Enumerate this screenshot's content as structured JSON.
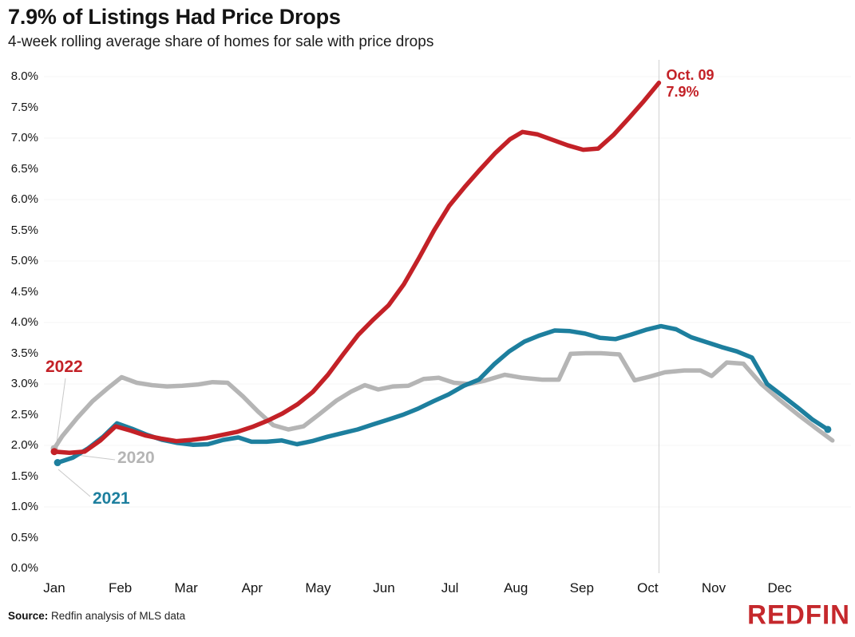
{
  "header": {
    "title": "7.9% of Listings Had Price Drops",
    "subtitle": "4-week rolling average share of homes for sale with price drops"
  },
  "footer": {
    "source_label": "Source:",
    "source_text": "Redfin analysis of MLS data",
    "logo": "REDFIN"
  },
  "colors": {
    "red_2022": "#c32127",
    "teal_2021": "#1d7f9e",
    "gray_2020": "#b5b5b5",
    "marker_line": "#d0d0d0",
    "grid_line": "#f4f4f4",
    "leader_line": "#c9c9c9",
    "logo_red": "#c5282c"
  },
  "chart_data": {
    "type": "line",
    "title": "7.9% of Listings Had Price Drops",
    "subtitle": "4-week rolling average share of homes for sale with price drops",
    "xlabel": "",
    "ylabel": "",
    "ylim": [
      0.0,
      8.0
    ],
    "grid": "faint horizontal lines at 1% intervals; vertical marker line at Oct 09",
    "legend_position": "inline labels at line starts",
    "x_axis": {
      "months": [
        "Jan",
        "Feb",
        "Mar",
        "Apr",
        "May",
        "Jun",
        "Jul",
        "Aug",
        "Sep",
        "Oct",
        "Nov",
        "Dec"
      ]
    },
    "y_axis": {
      "ticks": [
        {
          "v": 8.0,
          "label": "8.0%"
        },
        {
          "v": 7.5,
          "label": "7.5%"
        },
        {
          "v": 7.0,
          "label": "7.0%"
        },
        {
          "v": 6.5,
          "label": "6.5%"
        },
        {
          "v": 6.0,
          "label": "6.0%"
        },
        {
          "v": 5.5,
          "label": "5.5%"
        },
        {
          "v": 5.0,
          "label": "5.0%"
        },
        {
          "v": 4.5,
          "label": "4.5%"
        },
        {
          "v": 4.0,
          "label": "4.0%"
        },
        {
          "v": 3.5,
          "label": "3.5%"
        },
        {
          "v": 3.0,
          "label": "3.0%"
        },
        {
          "v": 2.5,
          "label": "2.5%"
        },
        {
          "v": 2.0,
          "label": "2.0%"
        },
        {
          "v": 1.5,
          "label": "1.5%"
        },
        {
          "v": 1.0,
          "label": "1.0%"
        },
        {
          "v": 0.5,
          "label": "0.5%"
        },
        {
          "v": 0.0,
          "label": "0.0%"
        }
      ]
    },
    "marker": {
      "m": 9.17,
      "date": "Oct. 09",
      "value": "7.9%"
    },
    "series": [
      {
        "name": "2020",
        "color": "#b5b5b5",
        "end_dot": false,
        "points": [
          [
            0.0,
            1.95
          ],
          [
            0.12,
            2.15
          ],
          [
            0.35,
            2.45
          ],
          [
            0.58,
            2.72
          ],
          [
            0.81,
            2.93
          ],
          [
            1.02,
            3.11
          ],
          [
            1.25,
            3.02
          ],
          [
            1.48,
            2.98
          ],
          [
            1.71,
            2.96
          ],
          [
            1.94,
            2.97
          ],
          [
            2.17,
            2.99
          ],
          [
            2.4,
            3.03
          ],
          [
            2.63,
            3.02
          ],
          [
            2.86,
            2.8
          ],
          [
            3.09,
            2.55
          ],
          [
            3.32,
            2.33
          ],
          [
            3.55,
            2.26
          ],
          [
            3.78,
            2.31
          ],
          [
            4.01,
            2.5
          ],
          [
            4.28,
            2.73
          ],
          [
            4.51,
            2.88
          ],
          [
            4.71,
            2.98
          ],
          [
            4.91,
            2.91
          ],
          [
            5.14,
            2.96
          ],
          [
            5.37,
            2.97
          ],
          [
            5.6,
            3.08
          ],
          [
            5.83,
            3.1
          ],
          [
            6.06,
            3.02
          ],
          [
            6.29,
            3.0
          ],
          [
            6.52,
            3.05
          ],
          [
            6.83,
            3.15
          ],
          [
            7.1,
            3.1
          ],
          [
            7.4,
            3.07
          ],
          [
            7.65,
            3.07
          ],
          [
            7.83,
            3.49
          ],
          [
            8.06,
            3.5
          ],
          [
            8.29,
            3.5
          ],
          [
            8.57,
            3.48
          ],
          [
            8.8,
            3.06
          ],
          [
            9.03,
            3.12
          ],
          [
            9.26,
            3.19
          ],
          [
            9.55,
            3.22
          ],
          [
            9.8,
            3.22
          ],
          [
            9.97,
            3.13
          ],
          [
            10.2,
            3.35
          ],
          [
            10.45,
            3.33
          ],
          [
            10.72,
            3.0
          ],
          [
            11.0,
            2.74
          ],
          [
            11.28,
            2.5
          ],
          [
            11.55,
            2.28
          ],
          [
            11.8,
            2.08
          ]
        ]
      },
      {
        "name": "2021",
        "color": "#1d7f9e",
        "end_dot": true,
        "points": [
          [
            0.05,
            1.72
          ],
          [
            0.28,
            1.8
          ],
          [
            0.51,
            1.95
          ],
          [
            0.74,
            2.14
          ],
          [
            0.95,
            2.36
          ],
          [
            1.18,
            2.27
          ],
          [
            1.41,
            2.17
          ],
          [
            1.64,
            2.09
          ],
          [
            1.87,
            2.04
          ],
          [
            2.1,
            2.01
          ],
          [
            2.33,
            2.02
          ],
          [
            2.56,
            2.09
          ],
          [
            2.79,
            2.13
          ],
          [
            2.99,
            2.06
          ],
          [
            3.22,
            2.06
          ],
          [
            3.45,
            2.08
          ],
          [
            3.68,
            2.02
          ],
          [
            3.91,
            2.07
          ],
          [
            4.14,
            2.14
          ],
          [
            4.37,
            2.2
          ],
          [
            4.6,
            2.26
          ],
          [
            4.83,
            2.34
          ],
          [
            5.06,
            2.42
          ],
          [
            5.29,
            2.5
          ],
          [
            5.52,
            2.6
          ],
          [
            5.75,
            2.72
          ],
          [
            5.98,
            2.83
          ],
          [
            6.21,
            2.97
          ],
          [
            6.44,
            3.07
          ],
          [
            6.67,
            3.32
          ],
          [
            6.9,
            3.53
          ],
          [
            7.13,
            3.69
          ],
          [
            7.36,
            3.79
          ],
          [
            7.59,
            3.87
          ],
          [
            7.82,
            3.86
          ],
          [
            8.05,
            3.82
          ],
          [
            8.28,
            3.75
          ],
          [
            8.51,
            3.73
          ],
          [
            8.74,
            3.8
          ],
          [
            8.97,
            3.88
          ],
          [
            9.2,
            3.94
          ],
          [
            9.43,
            3.89
          ],
          [
            9.66,
            3.76
          ],
          [
            9.89,
            3.68
          ],
          [
            10.12,
            3.6
          ],
          [
            10.35,
            3.53
          ],
          [
            10.58,
            3.43
          ],
          [
            10.81,
            3.0
          ],
          [
            11.04,
            2.81
          ],
          [
            11.27,
            2.62
          ],
          [
            11.5,
            2.42
          ],
          [
            11.73,
            2.26
          ]
        ]
      },
      {
        "name": "2022",
        "color": "#c32127",
        "end_dot": false,
        "points": [
          [
            0.0,
            1.9
          ],
          [
            0.23,
            1.88
          ],
          [
            0.46,
            1.9
          ],
          [
            0.7,
            2.08
          ],
          [
            0.93,
            2.31
          ],
          [
            1.16,
            2.24
          ],
          [
            1.39,
            2.16
          ],
          [
            1.62,
            2.11
          ],
          [
            1.85,
            2.07
          ],
          [
            2.08,
            2.09
          ],
          [
            2.31,
            2.12
          ],
          [
            2.54,
            2.17
          ],
          [
            2.77,
            2.22
          ],
          [
            3.0,
            2.3
          ],
          [
            3.23,
            2.4
          ],
          [
            3.46,
            2.52
          ],
          [
            3.69,
            2.67
          ],
          [
            3.92,
            2.87
          ],
          [
            4.15,
            3.15
          ],
          [
            4.38,
            3.48
          ],
          [
            4.61,
            3.8
          ],
          [
            4.84,
            4.05
          ],
          [
            5.07,
            4.28
          ],
          [
            5.3,
            4.62
          ],
          [
            5.53,
            5.05
          ],
          [
            5.76,
            5.5
          ],
          [
            5.99,
            5.9
          ],
          [
            6.22,
            6.2
          ],
          [
            6.45,
            6.48
          ],
          [
            6.68,
            6.75
          ],
          [
            6.91,
            6.98
          ],
          [
            7.1,
            7.1
          ],
          [
            7.33,
            7.06
          ],
          [
            7.56,
            6.97
          ],
          [
            7.79,
            6.88
          ],
          [
            8.02,
            6.81
          ],
          [
            8.25,
            6.83
          ],
          [
            8.48,
            7.05
          ],
          [
            8.71,
            7.32
          ],
          [
            8.94,
            7.6
          ],
          [
            9.17,
            7.9
          ]
        ]
      }
    ]
  }
}
